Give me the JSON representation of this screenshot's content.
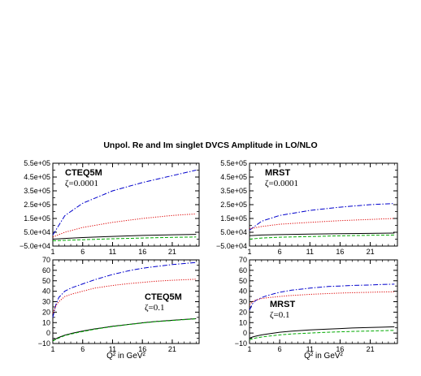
{
  "figure": {
    "title": "Unpol. Re and Im singlet DVCS Amplitude in LO/NLO"
  },
  "style": {
    "series_colors": [
      "#000000",
      "#00aa00",
      "#0000cc",
      "#dd0000"
    ],
    "series_dash": [
      "solid",
      "dashed",
      "dash-dot",
      "dotted"
    ]
  },
  "chart_data": [
    {
      "type": "line",
      "label": "CTEQ5M",
      "zeta": "ζ=0.0001",
      "x": [
        1,
        3,
        6,
        11,
        16,
        21,
        25
      ],
      "xlim": [
        1,
        25.5
      ],
      "ylim": [
        -50000,
        550000
      ],
      "yticks": [
        -50000,
        50000,
        150000,
        250000,
        350000,
        450000,
        550000
      ],
      "yticklabels": [
        "−5.0e+04",
        "5.0e+04",
        "1.5e+05",
        "2.5e+05",
        "3.5e+05",
        "4.5e+05",
        "5.5e+05"
      ],
      "xticks": [
        "1",
        "6",
        "11",
        "16",
        "21"
      ],
      "series": [
        {
          "values": [
            0,
            5000,
            12000,
            20000,
            27000,
            32000,
            35000
          ]
        },
        {
          "values": [
            -12000,
            -8000,
            -4000,
            3000,
            8000,
            13000,
            16000
          ]
        },
        {
          "values": [
            30000,
            170000,
            260000,
            350000,
            410000,
            460000,
            500000
          ]
        },
        {
          "values": [
            15000,
            50000,
            85000,
            122000,
            150000,
            172000,
            183000
          ]
        }
      ]
    },
    {
      "type": "line",
      "label": "MRST",
      "zeta": "ζ=0.0001",
      "x": [
        1,
        3,
        6,
        11,
        16,
        21,
        25
      ],
      "xlim": [
        1,
        25.5
      ],
      "ylim": [
        -50000,
        550000
      ],
      "yticks": [
        -50000,
        50000,
        150000,
        250000,
        350000,
        450000,
        550000
      ],
      "yticklabels": [
        "−5.0e+04",
        "5.0e+04",
        "1.5e+05",
        "2.5e+05",
        "3.5e+05",
        "4.5e+05",
        "5.5e+05"
      ],
      "xticks": [
        "1",
        "6",
        "11",
        "16",
        "21"
      ],
      "series": [
        {
          "values": [
            25000,
            30000,
            33000,
            37000,
            40000,
            42000,
            44000
          ]
        },
        {
          "values": [
            0,
            8000,
            14000,
            19000,
            24000,
            28000,
            30000
          ]
        },
        {
          "values": [
            65000,
            130000,
            172000,
            208000,
            232000,
            250000,
            258000
          ]
        },
        {
          "values": [
            75000,
            92000,
            108000,
            122000,
            134000,
            143000,
            150000
          ]
        }
      ]
    },
    {
      "type": "line",
      "label": "CTEQ5M",
      "zeta": "ζ=0.1",
      "xlabel": "Q² in GeV²",
      "x": [
        1,
        1.5,
        2,
        3,
        4,
        6,
        8,
        11,
        14,
        16,
        18,
        21,
        23,
        25
      ],
      "xlim": [
        1,
        25.5
      ],
      "ylim": [
        -10,
        70
      ],
      "yticks": [
        -10,
        0,
        10,
        20,
        30,
        40,
        50,
        60,
        70
      ],
      "yticklabels": [
        "−10",
        "0",
        "10",
        "20",
        "30",
        "40",
        "50",
        "60",
        "70"
      ],
      "xticks": [
        "1",
        "6",
        "11",
        "16",
        "21"
      ],
      "series": [
        {
          "values": [
            -7,
            -5.5,
            -4.2,
            -2,
            -0.5,
            2,
            4,
            6.5,
            8.5,
            9.8,
            11,
            12.2,
            13,
            13.8
          ]
        },
        {
          "values": [
            -7.5,
            -6,
            -4.8,
            -2.5,
            -1,
            1.5,
            3.6,
            6.2,
            8.3,
            9.6,
            10.8,
            12,
            12.8,
            13.6
          ]
        },
        {
          "values": [
            15,
            27,
            34,
            40,
            43,
            47,
            51,
            56,
            60,
            62,
            63.5,
            65.5,
            66.5,
            67.5
          ]
        },
        {
          "values": [
            19,
            26,
            30,
            35,
            37,
            40,
            43,
            45.5,
            47.5,
            48.5,
            49.5,
            50.5,
            51,
            51.5
          ]
        }
      ]
    },
    {
      "type": "line",
      "label": "MRST",
      "zeta": "ζ=0.1",
      "xlabel": "Q² in GeV²",
      "x": [
        1,
        1.5,
        2,
        3,
        4,
        6,
        8,
        11,
        14,
        16,
        18,
        21,
        23,
        25
      ],
      "xlim": [
        1,
        25.5
      ],
      "ylim": [
        -10,
        70
      ],
      "yticks": [
        -10,
        0,
        10,
        20,
        30,
        40,
        50,
        60,
        70
      ],
      "yticklabels": [
        "−10",
        "0",
        "10",
        "20",
        "30",
        "40",
        "50",
        "60",
        "70"
      ],
      "xticks": [
        "1",
        "6",
        "11",
        "16",
        "21"
      ],
      "series": [
        {
          "values": [
            -5,
            -3.8,
            -3,
            -1.8,
            -0.8,
            0.8,
            1.8,
            3,
            3.8,
            4.3,
            4.8,
            5.3,
            5.6,
            6
          ]
        },
        {
          "values": [
            -6.5,
            -5.5,
            -4.8,
            -3.8,
            -3,
            -1.8,
            -0.8,
            0,
            0.8,
            1.2,
            1.6,
            2,
            2.3,
            2.6
          ]
        },
        {
          "values": [
            22,
            28,
            31,
            34,
            36,
            39,
            41,
            43,
            44.5,
            45,
            45.5,
            46,
            46.5,
            46.8
          ]
        },
        {
          "values": [
            27,
            30,
            31.5,
            33,
            33.8,
            35,
            36,
            37,
            37.8,
            38.2,
            38.6,
            39,
            39.3,
            39.5
          ]
        }
      ]
    }
  ]
}
